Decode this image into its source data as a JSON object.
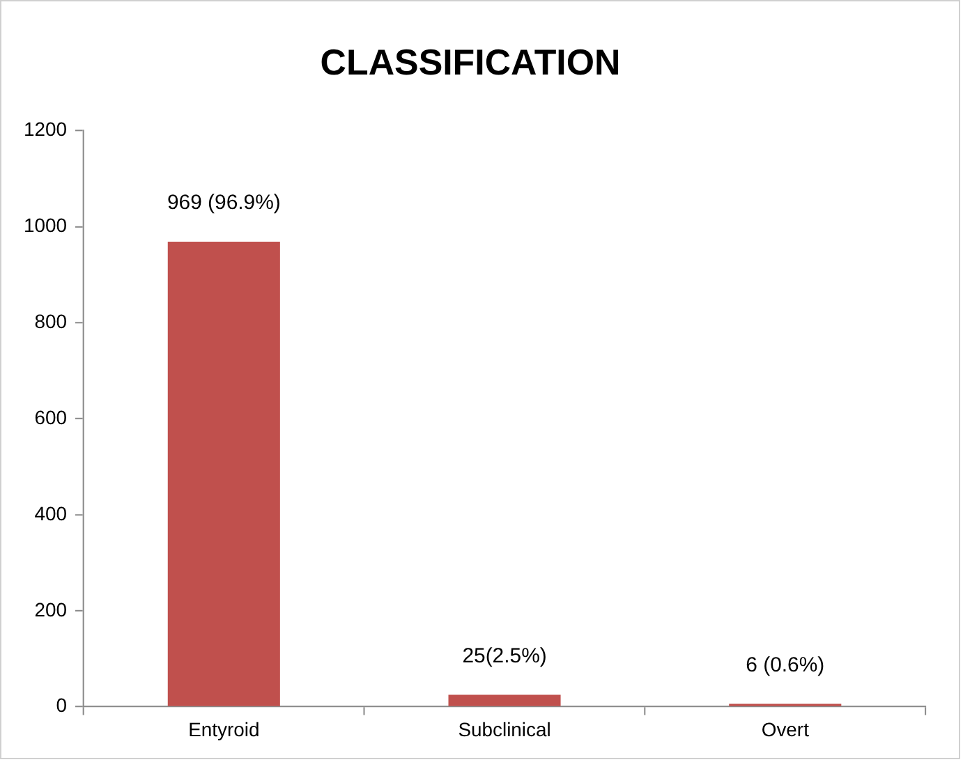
{
  "chart_data": {
    "type": "bar",
    "title": "CLASSIFICATION",
    "categories": [
      "Entyroid",
      "Subclinical",
      "Overt"
    ],
    "values": [
      969,
      25,
      6
    ],
    "color": "#c0504d",
    "value_labels": [
      "969 (96.9%)",
      "25(2.5%)",
      "6 (0.6%)"
    ],
    "ylim": [
      0,
      1200
    ],
    "yticks": [
      0,
      200,
      400,
      600,
      800,
      1000,
      1200
    ],
    "grid": false,
    "legend": false
  }
}
